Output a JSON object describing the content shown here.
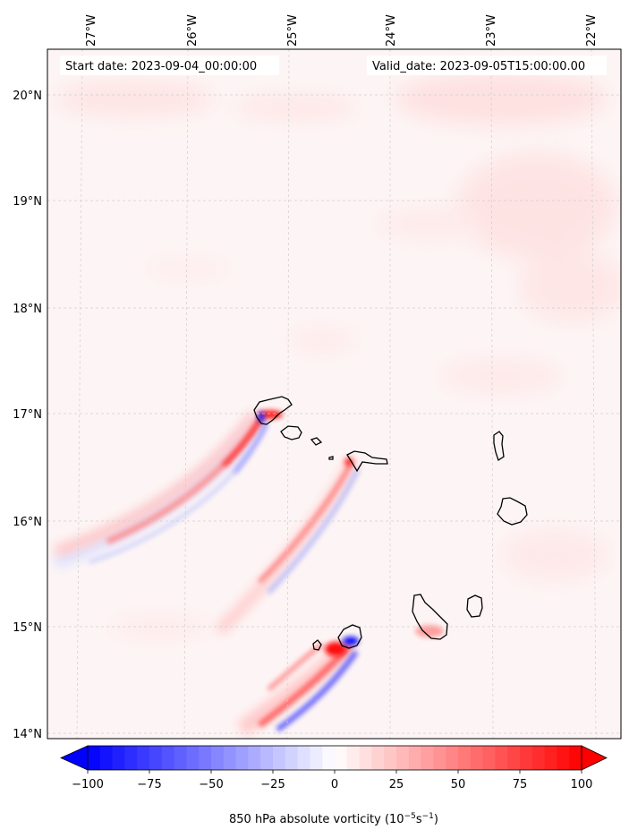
{
  "map": {
    "start_date": "Start date: 2023-09-04_00:00:00",
    "valid_date": "Valid_date: 2023-09-05T15:00:00.00",
    "lon_labels": [
      "27°W",
      "26°W",
      "25°W",
      "24°W",
      "23°W",
      "22°W"
    ],
    "lat_labels": [
      "20°N",
      "19°N",
      "18°N",
      "17°N",
      "16°N",
      "15°N",
      "14°N"
    ]
  },
  "colorbar": {
    "ticks": [
      "−100",
      "−75",
      "−50",
      "−25",
      "0",
      "25",
      "50",
      "75",
      "100"
    ],
    "tick_values": [
      -100,
      -75,
      -50,
      -25,
      0,
      25,
      50,
      75,
      100
    ],
    "range": [
      -100,
      100
    ],
    "levels": 40,
    "label_prefix": "850 hPa absolute vorticity (10",
    "label_exp1": "−5",
    "label_mid": "s",
    "label_exp2": "−1",
    "label_suffix": ")",
    "colors": {
      "low": "#0000ff",
      "mid": "#ffffff",
      "high": "#ff0000"
    }
  }
}
